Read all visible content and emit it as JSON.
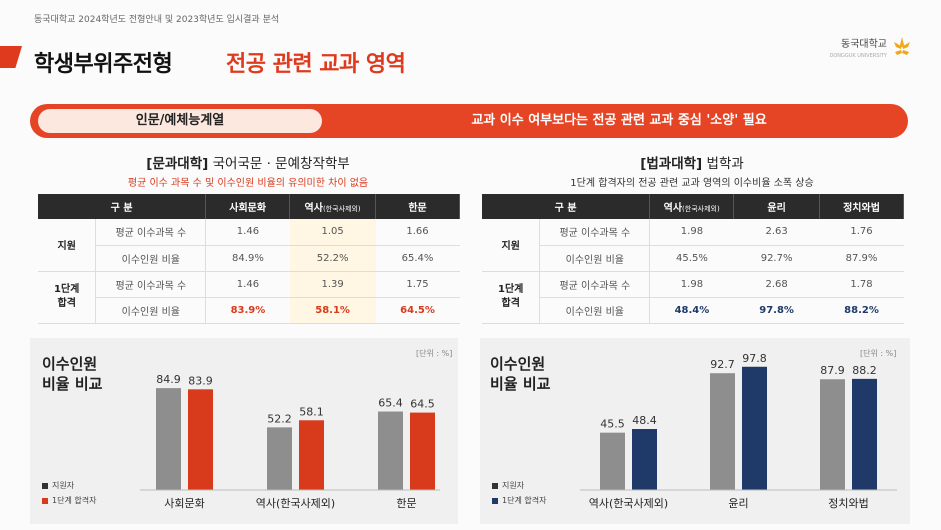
{
  "header": {
    "caption": "동국대학교 2024학년도 전형안내 및 2023학년도 입시결과 분석",
    "title_main": "학생부위주전형",
    "title_sub": "전공 관련 교과 영역",
    "logo_text": "동국대학교",
    "logo_sub": "DONGGUK UNIVERSITY"
  },
  "banner": {
    "pill": "인문/예체능계열",
    "text": "교과 이수 여부보다는 전공 관련 교과 중심 '소양' 필요"
  },
  "left": {
    "title_bracket": "[문과대학]",
    "title_rest": "국어국문 · 문예창작학부",
    "note": "평균 이수 과목 수 및 이수인원 비율의 유의미한 차이 없음",
    "table": {
      "col_group": "구 분",
      "columns": [
        {
          "main": "사회문화",
          "small": ""
        },
        {
          "main": "역사",
          "small": "(한국사제외)"
        },
        {
          "main": "한문",
          "small": ""
        }
      ],
      "groups": [
        {
          "name": "지원",
          "rows": [
            {
              "label": "평균 이수과목 수",
              "values": [
                "1.46",
                "1.05",
                "1.66"
              ]
            },
            {
              "label": "이수인원 비율",
              "values": [
                "84.9%",
                "52.2%",
                "65.4%"
              ]
            }
          ]
        },
        {
          "name": "1단계\n합격",
          "rows": [
            {
              "label": "평균 이수과목 수",
              "values": [
                "1.46",
                "1.39",
                "1.75"
              ]
            },
            {
              "label": "이수인원 비율",
              "values": [
                "83.9%",
                "58.1%",
                "64.5%"
              ]
            }
          ]
        }
      ]
    }
  },
  "right": {
    "title_bracket": "[법과대학]",
    "title_rest": "법학과",
    "note": "1단계 합격자의 전공 관련 교과 영역의 이수비율 소폭 상승",
    "table": {
      "col_group": "구 분",
      "columns": [
        {
          "main": "역사",
          "small": "(한국사제외)"
        },
        {
          "main": "윤리",
          "small": ""
        },
        {
          "main": "정치와법",
          "small": ""
        }
      ],
      "groups": [
        {
          "name": "지원",
          "rows": [
            {
              "label": "평균 이수과목 수",
              "values": [
                "1.98",
                "2.63",
                "1.76"
              ]
            },
            {
              "label": "이수인원 비율",
              "values": [
                "45.5%",
                "92.7%",
                "87.9%"
              ]
            }
          ]
        },
        {
          "name": "1단계\n합격",
          "rows": [
            {
              "label": "평균 이수과목 수",
              "values": [
                "1.98",
                "2.68",
                "1.78"
              ]
            },
            {
              "label": "이수인원 비율",
              "values": [
                "48.4%",
                "97.8%",
                "88.2%"
              ]
            }
          ]
        }
      ]
    }
  },
  "colors": {
    "accent": "#e64525",
    "left_apply": "#8e8e8e",
    "left_pass": "#d83a1c",
    "right_apply": "#8e8e8e",
    "right_pass": "#1f3a68"
  },
  "chart_data": [
    {
      "type": "bar",
      "title": "이수인원\n비율 비교",
      "unit": "[단위 : %]",
      "categories": [
        "사회문화",
        "역사(한국사제외)",
        "한문"
      ],
      "series": [
        {
          "name": "지원자",
          "values": [
            84.9,
            52.2,
            65.4
          ]
        },
        {
          "name": "1단계 합격자",
          "values": [
            83.9,
            58.1,
            64.5
          ]
        }
      ],
      "ylim": [
        0,
        100
      ]
    },
    {
      "type": "bar",
      "title": "이수인원\n비율 비교",
      "unit": "[단위 : %]",
      "categories": [
        "역사(한국사제외)",
        "윤리",
        "정치와법"
      ],
      "series": [
        {
          "name": "지원자",
          "values": [
            45.5,
            92.7,
            87.9
          ]
        },
        {
          "name": "1단계 합격자",
          "values": [
            48.4,
            97.8,
            88.2
          ]
        }
      ],
      "ylim": [
        0,
        100
      ]
    }
  ]
}
